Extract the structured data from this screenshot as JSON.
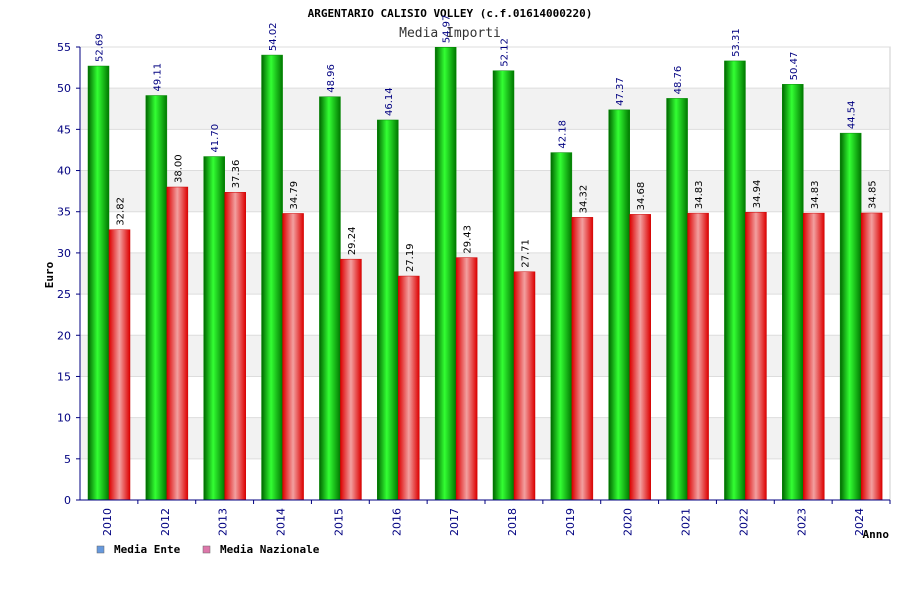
{
  "chart_data": {
    "type": "bar",
    "title": "ARGENTARIO CALISIO VOLLEY (c.f.01614000220)",
    "subtitle": "Media Importi",
    "xlabel": "Anno",
    "ylabel": "Euro",
    "ylim": [
      0,
      55
    ],
    "yticks": [
      0,
      5,
      10,
      15,
      20,
      25,
      30,
      35,
      40,
      45,
      50,
      55
    ],
    "categories": [
      "2010",
      "2012",
      "2013",
      "2014",
      "2015",
      "2016",
      "2017",
      "2018",
      "2019",
      "2020",
      "2021",
      "2022",
      "2023",
      "2024"
    ],
    "series": [
      {
        "name": "Media Ente",
        "color": "#00cc00",
        "legend_color": "#6699dd",
        "values": [
          52.69,
          49.11,
          41.7,
          54.02,
          48.96,
          46.14,
          54.97,
          52.12,
          42.18,
          47.37,
          48.76,
          53.31,
          50.47,
          44.54
        ],
        "labels": [
          "52.69",
          "49.11",
          "41.70",
          "54.02",
          "48.96",
          "46.14",
          "54.97",
          "52.12",
          "42.18",
          "47.37",
          "48.76",
          "53.31",
          "50.47",
          "44.54"
        ]
      },
      {
        "name": "Media Nazionale",
        "color": "#ee1111",
        "legend_color": "#dd77aa",
        "values": [
          32.82,
          38.0,
          37.36,
          34.79,
          29.24,
          27.19,
          29.43,
          27.71,
          34.32,
          34.68,
          34.83,
          34.94,
          34.83,
          34.85
        ],
        "labels": [
          "32.82",
          "38.00",
          "37.36",
          "34.79",
          "29.24",
          "27.19",
          "29.43",
          "27.71",
          "34.32",
          "34.68",
          "34.83",
          "34.94",
          "34.83",
          "34.85"
        ]
      }
    ],
    "legend_position": "bottom-left",
    "grid": true
  }
}
